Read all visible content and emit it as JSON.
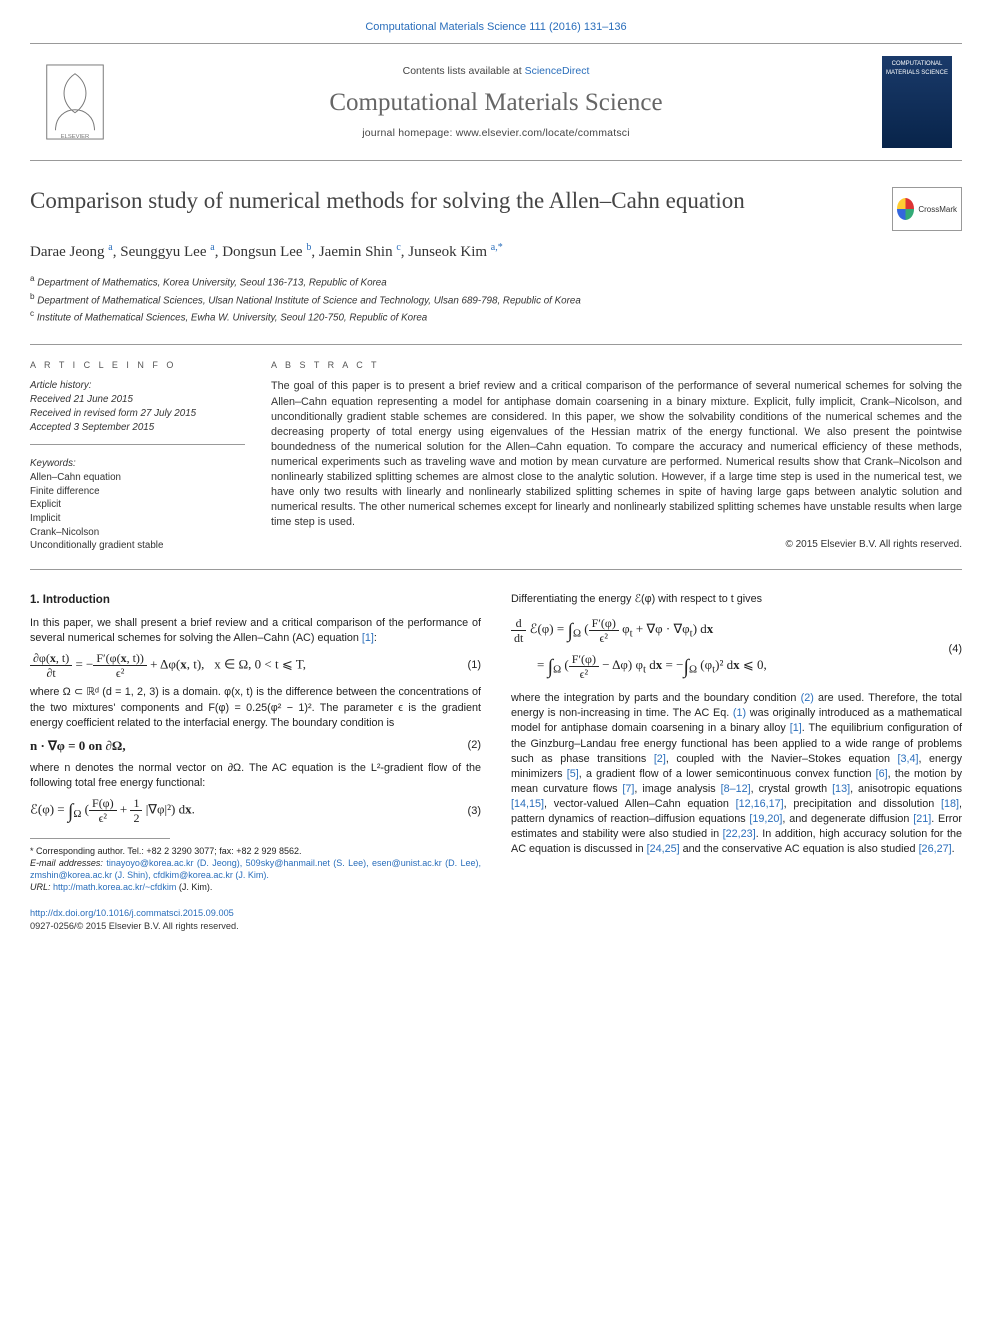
{
  "header": {
    "topref": "Computational Materials Science 111 (2016) 131–136",
    "contents_prefix": "Contents lists available at ",
    "contents_link": "ScienceDirect",
    "journal_name": "Computational Materials Science",
    "homepage_prefix": "journal homepage: ",
    "homepage_url": "www.elsevier.com/locate/commatsci",
    "cover_text": "COMPUTATIONAL MATERIALS SCIENCE",
    "crossmark_label": "CrossMark"
  },
  "title": "Comparison study of numerical methods for solving the Allen–Cahn equation",
  "authors_html": "Darae Jeong <sup>a</sup>, Seunggyu Lee <sup>a</sup>, Dongsun Lee <sup>b</sup>, Jaemin Shin <sup>c</sup>, Junseok Kim <sup>a,*</sup>",
  "affiliations": [
    "a Department of Mathematics, Korea University, Seoul 136-713, Republic of Korea",
    "b Department of Mathematical Sciences, Ulsan National Institute of Science and Technology, Ulsan 689-798, Republic of Korea",
    "c Institute of Mathematical Sciences, Ewha W. University, Seoul 120-750, Republic of Korea"
  ],
  "article_info": {
    "heading": "A R T I C L E   I N F O",
    "history_heading": "Article history:",
    "history": [
      "Received 21 June 2015",
      "Received in revised form 27 July 2015",
      "Accepted 3 September 2015"
    ],
    "keywords_heading": "Keywords:",
    "keywords": [
      "Allen–Cahn equation",
      "Finite difference",
      "Explicit",
      "Implicit",
      "Crank–Nicolson",
      "Unconditionally gradient stable"
    ]
  },
  "abstract": {
    "heading": "A B S T R A C T",
    "text": "The goal of this paper is to present a brief review and a critical comparison of the performance of several numerical schemes for solving the Allen–Cahn equation representing a model for antiphase domain coarsening in a binary mixture. Explicit, fully implicit, Crank–Nicolson, and unconditionally gradient stable schemes are considered. In this paper, we show the solvability conditions of the numerical schemes and the decreasing property of total energy using eigenvalues of the Hessian matrix of the energy functional. We also present the pointwise boundedness of the numerical solution for the Allen–Cahn equation. To compare the accuracy and numerical efficiency of these methods, numerical experiments such as traveling wave and motion by mean curvature are performed. Numerical results show that Crank–Nicolson and nonlinearly stabilized splitting schemes are almost close to the analytic solution. However, if a large time step is used in the numerical test, we have only two results with linearly and nonlinearly stabilized splitting schemes in spite of having large gaps between analytic solution and numerical results. The other numerical schemes except for linearly and nonlinearly stabilized splitting schemes have unstable results when large time step is used.",
    "copyright": "© 2015 Elsevier B.V. All rights reserved."
  },
  "section1": {
    "heading": "1. Introduction",
    "p1_prefix": "In this paper, we shall present a brief review and a critical comparison of the performance of several numerical schemes for solving the Allen–Cahn (AC) equation ",
    "ref1": "[1]",
    "p1_suffix": ":",
    "eq1_num": "(1)",
    "eq1_tail": "x ∈ Ω,  0 < t ⩽ T,",
    "p2": "where Ω ⊂ ℝᵈ (d = 1, 2, 3) is a domain. φ(x, t) is the difference between the concentrations of the two mixtures' components and F(φ) = 0.25(φ² − 1)². The parameter ϵ is the gradient energy coefficient related to the interfacial energy. The boundary condition is",
    "eq2": "n · ∇φ = 0  on ∂Ω,",
    "eq2_num": "(2)",
    "p3": "where n denotes the normal vector on ∂Ω. The AC equation is the L²-gradient flow of the following total free energy functional:",
    "eq3_num": "(3)"
  },
  "right_col": {
    "p_top": "Differentiating the energy ℰ(φ) with respect to t gives",
    "eq4_num": "(4)",
    "p_after_pref": "where the integration by parts and the boundary condition ",
    "ref2": "(2)",
    "p_after_mid": " are used. Therefore, the total energy is non-increasing in time. The AC Eq. ",
    "ref1b": "(1)",
    "p_after_mid2": " was originally introduced as a mathematical model for antiphase domain coarsening in a binary alloy ",
    "refs_block": "[1]. The equilibrium configuration of the Ginzburg–Landau free energy functional has been applied to a wide range of problems such as phase transitions [2], coupled with the Navier–Stokes equation [3,4], energy minimizers [5], a gradient flow of a lower semicontinuous convex function [6], the motion by mean curvature flows [7], image analysis [8–12], crystal growth [13], anisotropic equations [14,15], vector-valued Allen–Cahn equation [12,16,17], precipitation and dissolution [18], pattern dynamics of reaction–diffusion equations [19,20], and degenerate diffusion [21]. Error estimates and stability were also studied in [22,23]. In addition, high accuracy solution for the AC equation is discussed in [24,25] and the conservative AC equation is also studied [26,27]."
  },
  "footnotes": {
    "corresponding": "* Corresponding author. Tel.: +82 2 3290 3077; fax: +82 2 929 8562.",
    "emails_label": "E-mail addresses: ",
    "emails": "tinayoyo@korea.ac.kr (D. Jeong), 509sky@hanmail.net (S. Lee), esen@unist.ac.kr (D. Lee), zmshin@korea.ac.kr (J. Shin), cfdkim@korea.ac.kr (J. Kim).",
    "url_label": "URL: ",
    "url": "http://math.korea.ac.kr/~cfdkim",
    "url_tail": " (J. Kim)."
  },
  "doi": {
    "link": "http://dx.doi.org/10.1016/j.commatsci.2015.09.005",
    "issn": "0927-0256/© 2015 Elsevier B.V. All rights reserved."
  },
  "colors": {
    "link": "#2a6ebb",
    "text": "#333333",
    "rule": "#999999",
    "title": "#555555"
  }
}
